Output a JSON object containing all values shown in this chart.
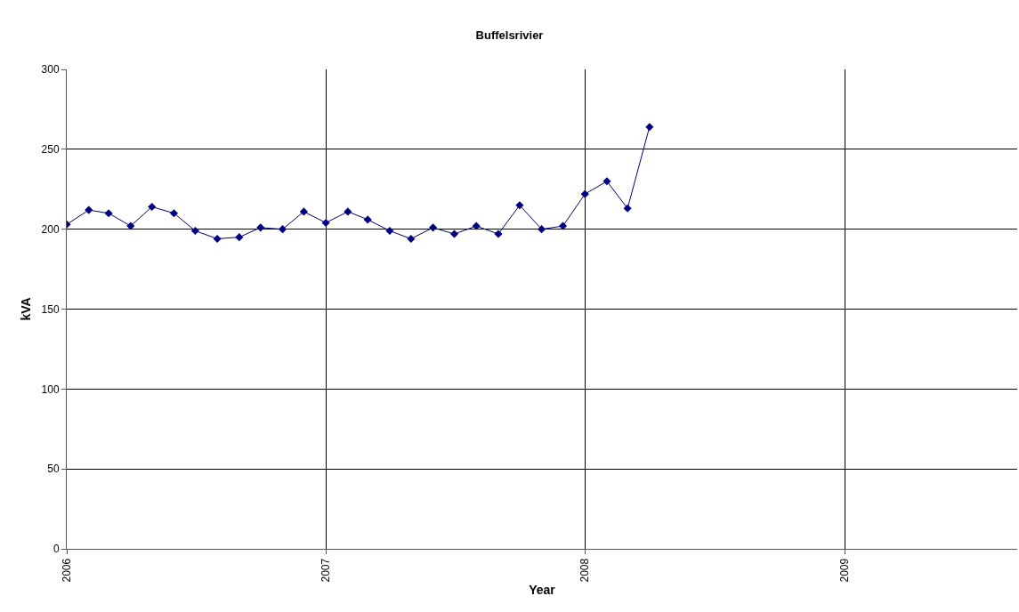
{
  "chart_data": {
    "type": "line",
    "title": "Buffelsrivier",
    "xlabel": "Year",
    "ylabel": "kVA",
    "x": [
      "2006-01",
      "2006-02",
      "2006-03",
      "2006-04",
      "2006-05",
      "2006-06",
      "2006-07",
      "2006-08",
      "2006-09",
      "2006-10",
      "2006-11",
      "2006-12",
      "2007-01",
      "2007-02",
      "2007-03",
      "2007-04",
      "2007-05",
      "2007-06",
      "2007-07",
      "2007-08",
      "2007-09",
      "2007-10",
      "2007-11",
      "2007-12",
      "2008-01",
      "2008-02",
      "2008-03",
      "2008-04"
    ],
    "series": [
      {
        "color": "#000080",
        "values": [
          203,
          212,
          210,
          202,
          214,
          210,
          199,
          194,
          195,
          201,
          200,
          211,
          204,
          211,
          206,
          199,
          194,
          201,
          197,
          202,
          197,
          215,
          200,
          202,
          222,
          230,
          213,
          264
        ]
      }
    ],
    "xlim": [
      "2006-01",
      "2009-09"
    ],
    "xticks": [
      "2006",
      "2007",
      "2008",
      "2009"
    ],
    "ylim": [
      0,
      300
    ],
    "yticks": [
      0,
      50,
      100,
      150,
      200,
      250,
      300
    ],
    "grid": true,
    "marker": "diamond",
    "line_style": "solid"
  }
}
